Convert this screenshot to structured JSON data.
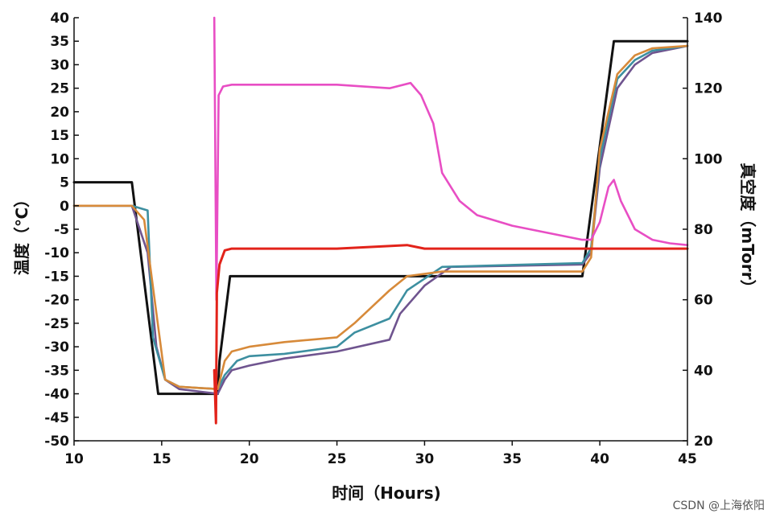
{
  "chart_data": {
    "type": "line",
    "xlabel": "时间（Hours)",
    "ylabel_left": "温度（℃）",
    "ylabel_right": "真空度（mTorr）",
    "xlim": [
      10,
      45
    ],
    "ylim_left": [
      -50,
      40
    ],
    "ylim_right": [
      20,
      140
    ],
    "x_ticks": [
      10,
      15,
      20,
      25,
      30,
      35,
      40,
      45
    ],
    "y_ticks_left": [
      -50,
      -45,
      -40,
      -35,
      -30,
      -25,
      -20,
      -15,
      -10,
      -5,
      0,
      5,
      10,
      15,
      20,
      25,
      30,
      35,
      40
    ],
    "y_ticks_right": [
      20,
      40,
      60,
      80,
      100,
      120,
      140
    ],
    "grid": false,
    "series": [
      {
        "color": "#111111",
        "axis": "left",
        "x": [
          10,
          13.3,
          14.8,
          18.2,
          18.3,
          18.9,
          39.0,
          40.8,
          45
        ],
        "y": [
          5,
          5,
          -40,
          -40,
          -33,
          -15,
          -15,
          35,
          35
        ]
      },
      {
        "color": "#6f548f",
        "axis": "left",
        "x": [
          10,
          13.3,
          14.2,
          14.7,
          15.2,
          16,
          18.2,
          18.6,
          19,
          20,
          22,
          25,
          28,
          28.6,
          30,
          31.5,
          39.0,
          39.5,
          40,
          41,
          42,
          43,
          45
        ],
        "y": [
          0,
          0,
          -10,
          -30,
          -37,
          -39,
          -40,
          -37,
          -35,
          -34,
          -32.5,
          -31,
          -28.5,
          -23,
          -17,
          -13,
          -12.5,
          -10,
          8,
          25,
          30,
          32.5,
          34
        ]
      },
      {
        "color": "#3d8fa0",
        "axis": "left",
        "x": [
          10,
          13.3,
          14.2,
          14.5,
          15.2,
          16,
          18.2,
          18.6,
          19.3,
          20,
          22,
          25,
          26,
          28,
          29,
          31,
          39.0,
          39.5,
          40,
          41,
          42,
          43,
          45
        ],
        "y": [
          0,
          0,
          -1,
          -28,
          -37,
          -38.5,
          -39,
          -36,
          -33,
          -32,
          -31.5,
          -30,
          -27,
          -24,
          -18,
          -13,
          -12.2,
          -9,
          10,
          27,
          31,
          33,
          34
        ]
      },
      {
        "color": "#d78a3a",
        "axis": "left",
        "x": [
          10,
          13.3,
          14.0,
          14.6,
          15.2,
          16,
          18.2,
          18.6,
          19,
          20,
          22,
          25,
          26,
          28,
          29,
          31,
          39.0,
          39.5,
          40,
          41,
          42,
          43,
          45
        ],
        "y": [
          0,
          0,
          -3,
          -20,
          -37,
          -38.5,
          -39,
          -33,
          -31,
          -30,
          -29,
          -28,
          -25,
          -18,
          -15,
          -14,
          -14,
          -11,
          12,
          28,
          32,
          33.5,
          34
        ]
      },
      {
        "color": "#e84ec4",
        "axis": "right",
        "x": [
          18.0,
          18.12,
          18.25,
          18.5,
          19,
          22,
          25,
          28,
          29.2,
          29.8,
          30.5,
          31,
          32,
          33,
          35,
          37,
          39,
          39.5,
          40,
          40.5,
          40.8,
          41.2,
          42,
          43,
          44,
          45
        ],
        "y": [
          140,
          60,
          118,
          120.5,
          121,
          121,
          121,
          120,
          121.5,
          118,
          110,
          96,
          88,
          84,
          81,
          79,
          77,
          77,
          82,
          92,
          94,
          88,
          80,
          77,
          76,
          75.5
        ]
      },
      {
        "color": "#e2231a",
        "axis": "right",
        "x": [
          18.0,
          18.1,
          18.15,
          18.3,
          18.6,
          19,
          25,
          29,
          30,
          35,
          40,
          45
        ],
        "y": [
          40,
          25,
          62,
          70,
          74,
          74.5,
          74.5,
          75.5,
          74.5,
          74.5,
          74.5,
          74.5
        ]
      }
    ]
  },
  "watermark": "CSDN @上海依阳"
}
